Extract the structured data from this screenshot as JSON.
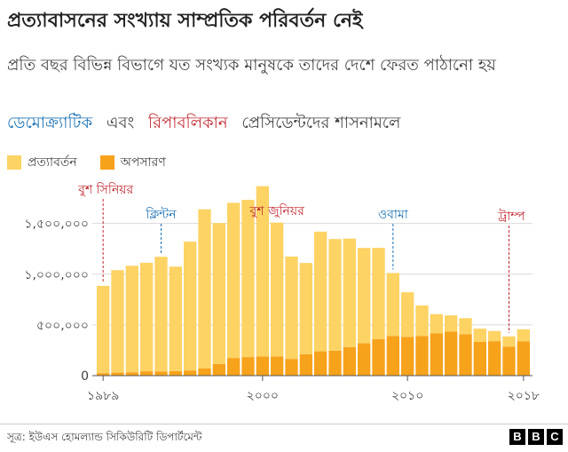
{
  "title": "প্রত্যাবাসনের সংখ্যায় সাম্প্রতিক পরিবর্তন নেই",
  "subtitle": "প্রতি বছর বিভিন্ন বিভাগে যত সংখ্যক মানুষকে তাদের দেশে ফেরত পাঠানো হয়",
  "subtitle2": {
    "dem": "ডেমোক্র্যাটিক",
    "and": "এবং",
    "rep": "রিপাবলিকান",
    "rest": "প্রেসিডেন্টদের শাসনামলে"
  },
  "colors": {
    "returns": "#fdd364",
    "removals": "#f7a21b",
    "democrat": "#1a70b5",
    "republican": "#c0282f",
    "grid": "#d9d9d9"
  },
  "source": "সূত্র: ইউএস হোমল্যান্ড সিকিউরিটি ডিপার্টমেন্ট",
  "logo": [
    "B",
    "B",
    "C"
  ],
  "chart_data": {
    "type": "bar",
    "stacked": true,
    "x": [
      1989,
      1990,
      1991,
      1992,
      1993,
      1994,
      1995,
      1996,
      1997,
      1998,
      1999,
      2000,
      2001,
      2002,
      2003,
      2004,
      2005,
      2006,
      2007,
      2008,
      2009,
      2010,
      2011,
      2012,
      2013,
      2014,
      2015,
      2016,
      2017,
      2018
    ],
    "series": [
      {
        "name": "প্রত্যাবর্তন",
        "values": [
          860000,
          1010000,
          1050000,
          1070000,
          1130000,
          1030000,
          1270000,
          1570000,
          1390000,
          1530000,
          1550000,
          1680000,
          1320000,
          1010000,
          900000,
          1180000,
          1100000,
          1070000,
          940000,
          900000,
          620000,
          440000,
          300000,
          190000,
          160000,
          160000,
          130000,
          100000,
          100000,
          120000
        ]
      },
      {
        "name": "অপসারণ",
        "values": [
          25000,
          30000,
          33000,
          43000,
          42000,
          45000,
          51000,
          70000,
          115000,
          174000,
          183000,
          188000,
          189000,
          165000,
          211000,
          240000,
          247000,
          281000,
          319000,
          360000,
          392000,
          382000,
          392000,
          416000,
          434000,
          407000,
          333000,
          340000,
          287000,
          337000
        ]
      }
    ],
    "y_ticks": [
      0,
      500000,
      1000000,
      1500000
    ],
    "y_tick_labels": [
      "0",
      "৫০০,০০০",
      "১,০০০,০০০",
      "১,৫০০,০০০"
    ],
    "x_tick_labels": [
      {
        "year": 1989,
        "label": "১৯৮৯"
      },
      {
        "year": 2000,
        "label": "২০০০"
      },
      {
        "year": 2010,
        "label": "২০১০"
      },
      {
        "year": 2018,
        "label": "২০১৮"
      }
    ],
    "ylim": [
      0,
      1900000
    ],
    "presidents": [
      {
        "name": "বুশ সিনিয়র",
        "year": 1989,
        "party": "republican"
      },
      {
        "name": "ক্লিন্টন",
        "year": 1993,
        "party": "democrat"
      },
      {
        "name": "বুশ জুনিয়র",
        "year": 2001,
        "party": "republican"
      },
      {
        "name": "ওবামা",
        "year": 2009,
        "party": "democrat"
      },
      {
        "name": "ট্রাম্প",
        "year": 2017,
        "party": "republican"
      }
    ]
  }
}
